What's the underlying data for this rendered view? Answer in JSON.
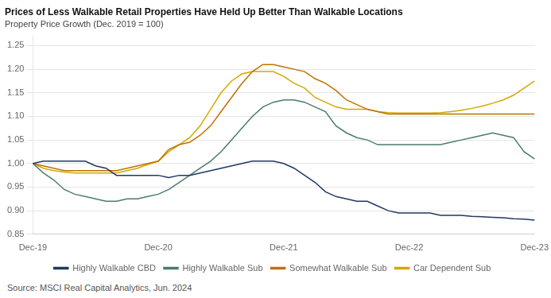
{
  "chart_data": {
    "type": "line",
    "title": "Prices of Less Walkable Retail Properties Have Held Up Better Than Walkable Locations",
    "subtitle": "Property Price Growth (Dec. 2019 = 100)",
    "source": "Source: MSCI Real Capital Analytics, Jun. 2024",
    "categories": [
      "Dec-19",
      null,
      null,
      null,
      null,
      null,
      null,
      null,
      null,
      null,
      null,
      null,
      "Dec-20",
      null,
      null,
      null,
      null,
      null,
      null,
      null,
      null,
      null,
      null,
      null,
      "Dec-21",
      null,
      null,
      null,
      null,
      null,
      null,
      null,
      null,
      null,
      null,
      null,
      "Dec-22",
      null,
      null,
      null,
      null,
      null,
      null,
      null,
      null,
      null,
      null,
      null,
      "Dec-23"
    ],
    "series": [
      {
        "name": "Highly Walkable CBD",
        "color": "#1f3864",
        "values": [
          1.0,
          1.005,
          1.005,
          1.005,
          1.005,
          1.005,
          0.995,
          0.99,
          0.975,
          0.975,
          0.975,
          0.975,
          0.975,
          0.97,
          0.975,
          0.975,
          0.98,
          0.985,
          0.99,
          0.995,
          1.0,
          1.005,
          1.005,
          1.005,
          1.0,
          0.99,
          0.975,
          0.96,
          0.94,
          0.93,
          0.925,
          0.92,
          0.92,
          0.91,
          0.9,
          0.895,
          0.895,
          0.895,
          0.895,
          0.89,
          0.89,
          0.89,
          0.888,
          0.887,
          0.886,
          0.885,
          0.883,
          0.882,
          0.88
        ]
      },
      {
        "name": "Highly Walkable Sub",
        "color": "#4a7c6e",
        "values": [
          1.0,
          0.98,
          0.965,
          0.945,
          0.935,
          0.93,
          0.925,
          0.92,
          0.92,
          0.925,
          0.925,
          0.93,
          0.935,
          0.945,
          0.96,
          0.975,
          0.99,
          1.005,
          1.025,
          1.05,
          1.075,
          1.1,
          1.12,
          1.13,
          1.135,
          1.135,
          1.13,
          1.12,
          1.11,
          1.08,
          1.065,
          1.055,
          1.05,
          1.04,
          1.04,
          1.04,
          1.04,
          1.04,
          1.04,
          1.04,
          1.045,
          1.05,
          1.055,
          1.06,
          1.065,
          1.06,
          1.055,
          1.025,
          1.01
        ]
      },
      {
        "name": "Somewhat Walkable Sub",
        "color": "#c07000",
        "values": [
          1.0,
          0.995,
          0.99,
          0.985,
          0.985,
          0.985,
          0.985,
          0.985,
          0.985,
          0.99,
          0.995,
          1.0,
          1.005,
          1.03,
          1.04,
          1.045,
          1.06,
          1.08,
          1.11,
          1.14,
          1.17,
          1.195,
          1.21,
          1.21,
          1.205,
          1.2,
          1.195,
          1.18,
          1.17,
          1.155,
          1.135,
          1.125,
          1.115,
          1.11,
          1.105,
          1.105,
          1.105,
          1.105,
          1.105,
          1.105,
          1.105,
          1.105,
          1.105,
          1.105,
          1.105,
          1.105,
          1.105,
          1.105,
          1.105
        ]
      },
      {
        "name": "Car Dependent Sub",
        "color": "#d4a800",
        "values": [
          1.0,
          0.99,
          0.985,
          0.982,
          0.98,
          0.98,
          0.98,
          0.98,
          0.98,
          0.985,
          0.99,
          0.998,
          1.005,
          1.025,
          1.04,
          1.055,
          1.08,
          1.115,
          1.15,
          1.175,
          1.19,
          1.195,
          1.195,
          1.195,
          1.185,
          1.17,
          1.16,
          1.14,
          1.13,
          1.12,
          1.115,
          1.115,
          1.115,
          1.11,
          1.108,
          1.107,
          1.107,
          1.107,
          1.107,
          1.108,
          1.11,
          1.113,
          1.117,
          1.122,
          1.128,
          1.135,
          1.145,
          1.16,
          1.175
        ]
      }
    ],
    "ylim": [
      0.85,
      1.27
    ],
    "yticks": [
      0.85,
      {
        "value": 0.9,
        "label": "0.90"
      },
      0.95,
      {
        "value": 1.0,
        "label": "1.00"
      },
      1.05,
      {
        "value": 1.1,
        "label": "1.10"
      },
      1.15,
      {
        "value": 1.2,
        "label": "1.20"
      },
      1.25
    ],
    "grid": true,
    "legend": "bottom"
  }
}
